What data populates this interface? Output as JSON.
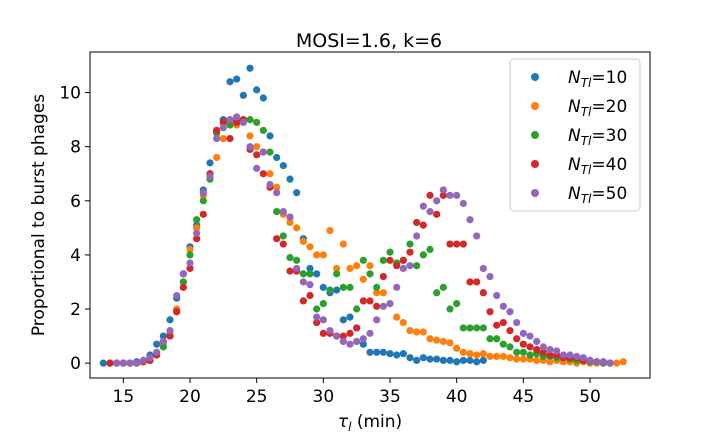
{
  "chart_data": {
    "type": "scatter",
    "title": "MOSI=1.6, k=6",
    "xlabel_main": "τ",
    "xlabel_sub": "l",
    "xlabel_unit": " (min)",
    "ylabel": "Proportional to burst phages",
    "xlim": [
      12.5,
      54.5
    ],
    "ylim": [
      -0.55,
      11.5
    ],
    "xticks": [
      15,
      20,
      25,
      30,
      35,
      40,
      45,
      50
    ],
    "yticks": [
      0,
      2,
      4,
      6,
      8,
      10
    ],
    "legend_position": "top-right",
    "series": [
      {
        "name_prefix": "N",
        "name_sub": "Tl",
        "name_suffix": "=10",
        "color": "#1f77b4",
        "x": [
          13.5,
          14.0,
          14.5,
          15.0,
          15.5,
          16.0,
          16.5,
          17.0,
          17.5,
          18.0,
          18.5,
          19.0,
          19.5,
          20.0,
          20.5,
          21.0,
          21.5,
          22.0,
          22.5,
          23.0,
          23.5,
          24.0,
          24.5,
          25.0,
          25.5,
          26.0,
          26.5,
          27.0,
          27.5,
          28.0,
          28.5,
          29.0,
          29.5,
          30.0,
          30.5,
          31.0,
          31.5,
          32.0,
          32.5,
          33.0,
          33.5,
          34.0,
          34.5,
          35.0,
          35.5,
          36.0,
          36.5,
          37.0,
          37.5,
          38.0,
          38.5,
          39.0,
          39.5,
          40.0,
          40.5,
          41.0,
          41.5,
          42.0
        ],
        "y": [
          0.0,
          0.0,
          0.0,
          0.0,
          0.0,
          0.05,
          0.1,
          0.3,
          0.7,
          1.0,
          1.6,
          2.4,
          3.3,
          4.3,
          5.1,
          6.4,
          7.4,
          8.6,
          9.0,
          10.4,
          10.5,
          9.9,
          10.9,
          10.1,
          9.8,
          8.4,
          7.6,
          7.3,
          6.8,
          6.3,
          4.6,
          3.5,
          3.3,
          2.8,
          2.6,
          2.7,
          1.6,
          1.7,
          1.3,
          0.7,
          0.4,
          0.4,
          0.4,
          0.35,
          0.3,
          0.35,
          0.2,
          0.1,
          0.2,
          0.15,
          0.15,
          0.1,
          0.1,
          0.05,
          0.1,
          0.1,
          0.05,
          0.1
        ]
      },
      {
        "name_prefix": "N",
        "name_sub": "Tl",
        "name_suffix": "=20",
        "color": "#ff7f0e",
        "x": [
          14.0,
          14.5,
          15.0,
          15.5,
          16.0,
          16.5,
          17.0,
          17.5,
          18.0,
          18.5,
          19.0,
          19.5,
          20.0,
          20.5,
          21.0,
          21.5,
          22.0,
          22.5,
          23.0,
          23.5,
          24.0,
          24.5,
          25.0,
          25.5,
          26.0,
          26.5,
          27.0,
          27.5,
          28.0,
          28.5,
          29.0,
          29.5,
          30.0,
          30.5,
          31.0,
          31.5,
          32.0,
          32.5,
          33.0,
          33.5,
          34.0,
          34.5,
          35.0,
          35.5,
          36.0,
          36.5,
          37.0,
          37.5,
          38.0,
          38.5,
          39.0,
          39.5,
          40.0,
          40.5,
          41.0,
          41.5,
          42.0,
          42.5,
          43.0,
          43.5,
          44.0,
          44.5,
          45.0,
          45.5,
          46.0,
          46.5,
          47.0,
          47.5,
          48.0,
          48.5,
          49.0,
          49.5,
          50.0,
          50.5,
          51.0,
          51.5,
          52.0,
          52.5
        ],
        "y": [
          0.0,
          0.0,
          0.0,
          0.0,
          0.0,
          0.05,
          0.1,
          0.3,
          0.7,
          1.1,
          2.0,
          3.0,
          4.2,
          5.0,
          6.2,
          7.0,
          7.6,
          8.3,
          8.9,
          8.8,
          8.9,
          8.4,
          8.0,
          7.8,
          7.0,
          6.5,
          5.5,
          5.2,
          5.0,
          4.5,
          4.3,
          4.0,
          4.0,
          4.9,
          3.5,
          4.4,
          3.5,
          3.6,
          3.1,
          3.6,
          2.6,
          2.6,
          2.2,
          1.7,
          1.5,
          1.2,
          1.15,
          1.15,
          0.9,
          0.85,
          0.8,
          0.75,
          0.55,
          0.4,
          0.35,
          0.3,
          0.35,
          0.25,
          0.25,
          0.25,
          0.2,
          0.15,
          0.15,
          0.15,
          0.1,
          0.1,
          0.05,
          0.1,
          0.05,
          0.05,
          0.0,
          0.05,
          0.0,
          0.0,
          0.0,
          0.0,
          0.0,
          0.05
        ]
      },
      {
        "name_prefix": "N",
        "name_sub": "Tl",
        "name_suffix": "=30",
        "color": "#2ca02c",
        "x": [
          14.0,
          14.5,
          15.0,
          15.5,
          16.0,
          16.5,
          17.0,
          17.5,
          18.0,
          18.5,
          19.0,
          19.5,
          20.0,
          20.5,
          21.0,
          21.5,
          22.0,
          22.5,
          23.0,
          23.5,
          24.0,
          24.5,
          25.0,
          25.5,
          26.0,
          26.5,
          27.0,
          27.5,
          28.0,
          28.5,
          29.0,
          29.5,
          30.0,
          30.5,
          31.0,
          31.5,
          32.0,
          32.5,
          33.0,
          33.5,
          34.0,
          34.5,
          35.0,
          35.5,
          36.0,
          36.5,
          37.0,
          37.5,
          38.0,
          38.5,
          39.0,
          39.5,
          40.0,
          40.5,
          41.0,
          41.5,
          42.0,
          42.5,
          43.0,
          43.5,
          44.0,
          44.5,
          45.0,
          45.5,
          46.0,
          46.5,
          47.0,
          47.5,
          48.0,
          48.5,
          49.0,
          49.5,
          50.0,
          50.5,
          51.0,
          51.5
        ],
        "y": [
          0.0,
          0.0,
          0.0,
          0.0,
          0.0,
          0.05,
          0.1,
          0.3,
          0.6,
          1.0,
          1.9,
          3.0,
          4.0,
          5.3,
          6.0,
          6.8,
          8.5,
          8.9,
          8.8,
          9.0,
          8.9,
          9.0,
          8.9,
          8.6,
          7.8,
          5.6,
          4.7,
          3.9,
          3.8,
          3.3,
          3.3,
          2.0,
          2.2,
          2.7,
          3.3,
          2.8,
          2.8,
          2.0,
          3.8,
          3.3,
          2.8,
          3.8,
          4.1,
          3.7,
          3.8,
          4.4,
          3.6,
          4.0,
          4.2,
          2.6,
          2.8,
          2.0,
          2.2,
          1.3,
          1.3,
          1.3,
          1.3,
          0.9,
          0.9,
          0.7,
          0.6,
          0.4,
          0.4,
          0.3,
          0.35,
          0.25,
          0.25,
          0.2,
          0.2,
          0.15,
          0.1,
          0.1,
          0.05,
          0.05,
          0.0,
          0.0
        ]
      },
      {
        "name_prefix": "N",
        "name_sub": "Tl",
        "name_suffix": "=40",
        "color": "#d62728",
        "x": [
          14.0,
          14.5,
          15.0,
          15.5,
          16.0,
          16.5,
          17.0,
          17.5,
          18.0,
          18.5,
          19.0,
          19.5,
          20.0,
          20.5,
          21.0,
          21.5,
          22.0,
          22.5,
          23.0,
          23.5,
          24.0,
          24.5,
          25.0,
          25.5,
          26.0,
          26.5,
          27.0,
          27.5,
          28.0,
          28.5,
          29.0,
          29.5,
          30.0,
          30.5,
          31.0,
          31.5,
          32.0,
          32.5,
          33.0,
          33.5,
          34.0,
          34.5,
          35.0,
          35.5,
          36.0,
          36.5,
          37.0,
          37.5,
          38.0,
          38.5,
          39.0,
          39.5,
          40.0,
          40.5,
          41.0,
          41.5,
          42.0,
          42.5,
          43.0,
          43.5,
          44.0,
          44.5,
          45.0,
          45.5,
          46.0,
          46.5,
          47.0,
          47.5,
          48.0,
          48.5,
          49.0,
          49.5,
          50.0,
          50.5,
          51.0,
          51.5
        ],
        "y": [
          0.0,
          0.0,
          0.0,
          0.0,
          0.0,
          0.05,
          0.1,
          0.3,
          0.8,
          1.0,
          1.9,
          2.8,
          3.5,
          4.6,
          5.5,
          7.0,
          8.6,
          8.9,
          8.3,
          8.9,
          9.0,
          7.9,
          7.7,
          7.0,
          6.5,
          4.6,
          4.4,
          3.4,
          3.4,
          2.3,
          2.5,
          1.5,
          1.1,
          1.1,
          1.0,
          1.0,
          1.1,
          1.3,
          2.3,
          2.3,
          2.1,
          3.2,
          3.8,
          3.6,
          3.8,
          4.1,
          5.2,
          5.1,
          6.2,
          5.5,
          6.2,
          4.4,
          4.4,
          4.4,
          3.0,
          3.0,
          2.6,
          1.9,
          1.4,
          1.5,
          1.2,
          0.9,
          0.7,
          0.6,
          0.5,
          0.4,
          0.3,
          0.3,
          0.2,
          0.2,
          0.2,
          0.1,
          0.1,
          0.05,
          0.05,
          0.0
        ]
      },
      {
        "name_prefix": "N",
        "name_sub": "Tl",
        "name_suffix": "=50",
        "color": "#9467bd",
        "x": [
          14.5,
          15.0,
          15.5,
          16.0,
          16.5,
          17.0,
          17.5,
          18.0,
          18.5,
          19.0,
          19.5,
          20.0,
          20.5,
          21.0,
          21.5,
          22.0,
          22.5,
          23.0,
          23.5,
          24.0,
          24.5,
          25.0,
          25.5,
          26.0,
          26.5,
          27.0,
          27.5,
          28.0,
          28.5,
          29.0,
          29.5,
          30.0,
          30.5,
          31.0,
          31.5,
          32.0,
          32.5,
          33.0,
          33.5,
          34.0,
          34.5,
          35.0,
          35.5,
          36.0,
          36.5,
          37.0,
          37.5,
          38.0,
          38.5,
          39.0,
          39.5,
          40.0,
          40.5,
          41.0,
          41.5,
          42.0,
          42.5,
          43.0,
          43.5,
          44.0,
          44.5,
          45.0,
          45.5,
          46.0,
          46.5,
          47.0,
          47.5,
          48.0,
          48.5,
          49.0,
          49.5,
          50.0,
          50.5,
          51.0,
          51.5
        ],
        "y": [
          0.0,
          0.0,
          0.0,
          0.0,
          0.1,
          0.2,
          0.4,
          0.8,
          1.2,
          2.5,
          3.3,
          3.7,
          4.8,
          6.3,
          6.9,
          8.3,
          8.7,
          9.0,
          9.1,
          8.9,
          8.0,
          7.2,
          7.8,
          6.6,
          6.3,
          5.6,
          5.4,
          3.5,
          3.0,
          2.9,
          1.7,
          1.6,
          1.2,
          1.0,
          0.8,
          0.7,
          0.8,
          0.9,
          1.1,
          1.6,
          2.1,
          2.2,
          2.8,
          3.5,
          3.6,
          4.7,
          5.8,
          5.6,
          6.0,
          6.4,
          6.2,
          6.2,
          5.9,
          5.3,
          4.7,
          3.5,
          3.2,
          2.5,
          2.1,
          1.9,
          1.5,
          1.1,
          1.0,
          0.8,
          0.6,
          0.5,
          0.45,
          0.3,
          0.3,
          0.25,
          0.2,
          0.1,
          0.05,
          0.05,
          0.0
        ]
      }
    ]
  }
}
